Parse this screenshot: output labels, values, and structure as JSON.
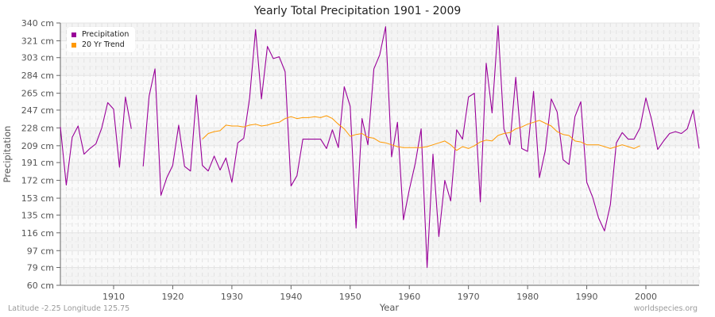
{
  "chart_data": {
    "type": "line",
    "title": "Yearly Total Precipitation 1901 - 2009",
    "xlabel": "Year",
    "ylabel": "Precipitation",
    "xlim": [
      1901,
      2009
    ],
    "ylim": [
      60,
      340
    ],
    "x_ticks": [
      1910,
      1920,
      1930,
      1940,
      1950,
      1960,
      1970,
      1980,
      1990,
      2000
    ],
    "y_ticks": [
      60,
      79,
      97,
      116,
      135,
      153,
      172,
      191,
      209,
      228,
      247,
      265,
      284,
      303,
      321,
      340
    ],
    "y_tick_labels": [
      "60 cm",
      "79 cm",
      "97 cm",
      "116 cm",
      "135 cm",
      "153 cm",
      "172 cm",
      "191 cm",
      "209 cm",
      "228 cm",
      "247 cm",
      "265 cm",
      "284 cm",
      "303 cm",
      "321 cm",
      "340 cm"
    ],
    "grid": true,
    "legend_position": "top-left",
    "series": [
      {
        "name": "Precipitation",
        "color": "#990099",
        "x_start": 1901,
        "values": [
          229,
          167,
          218,
          230,
          200,
          206,
          211,
          228,
          255,
          248,
          186,
          261,
          227,
          null,
          187,
          262,
          291,
          156,
          175,
          188,
          231,
          187,
          182,
          263,
          188,
          182,
          198,
          183,
          196,
          170,
          212,
          217,
          260,
          333,
          259,
          315,
          302,
          304,
          288,
          166,
          177,
          216,
          216,
          216,
          216,
          206,
          226,
          207,
          272,
          251,
          121,
          238,
          210,
          291,
          306,
          336,
          197,
          234,
          130,
          162,
          190,
          227,
          79,
          200,
          112,
          172,
          150,
          226,
          216,
          261,
          265,
          149,
          297,
          244,
          337,
          227,
          210,
          282,
          206,
          203,
          267,
          175,
          204,
          259,
          245,
          194,
          189,
          240,
          256,
          170,
          154,
          132,
          118,
          146,
          212,
          223,
          216,
          216,
          228,
          260,
          236,
          205,
          214,
          222,
          224,
          222,
          227,
          247,
          206
        ]
      },
      {
        "name": "20 Yr Trend",
        "color": "#ff9900",
        "x_start": 1925,
        "values": [
          216,
          222,
          224,
          225,
          231,
          230,
          230,
          229,
          231,
          232,
          230,
          231,
          233,
          234,
          238,
          240,
          238,
          239,
          239,
          240,
          239,
          241,
          238,
          232,
          227,
          219,
          221,
          222,
          218,
          217,
          213,
          212,
          210,
          208,
          207,
          207,
          207,
          207,
          208,
          210,
          212,
          214,
          210,
          204,
          208,
          206,
          209,
          213,
          215,
          214,
          220,
          222,
          223,
          227,
          229,
          232,
          234,
          236,
          233,
          230,
          224,
          221,
          220,
          214,
          213,
          210,
          210,
          210,
          208,
          206,
          208,
          210,
          208,
          206,
          209
        ]
      }
    ]
  },
  "legend": {
    "items": [
      {
        "label": "Precipitation",
        "color": "#990099"
      },
      {
        "label": "20 Yr Trend",
        "color": "#ff9900"
      }
    ]
  },
  "footer": {
    "location": "Latitude -2.25 Longitude 125.75",
    "source": "worldspecies.org"
  }
}
